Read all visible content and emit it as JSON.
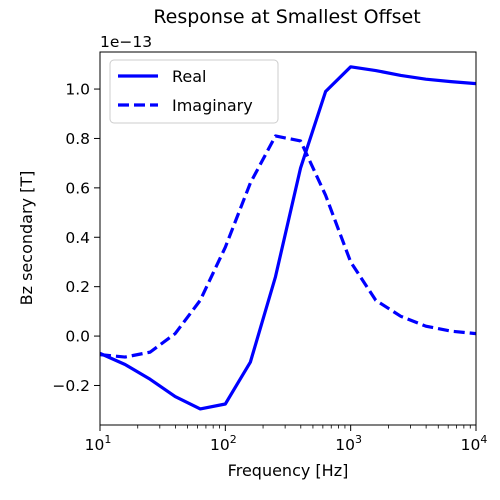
{
  "chart_data": {
    "type": "line",
    "title": "Response at Smallest Offset",
    "xlabel": "Frequency [Hz]",
    "ylabel": "Bz secondary [T]",
    "x_scale": "log",
    "xlim": [
      10,
      10000
    ],
    "ylim": [
      -0.36,
      1.15
    ],
    "y_multiplier": "1e−13",
    "x_ticks": [
      {
        "value": 10,
        "base": "10",
        "exp": "1"
      },
      {
        "value": 100,
        "base": "10",
        "exp": "2"
      },
      {
        "value": 1000,
        "base": "10",
        "exp": "3"
      },
      {
        "value": 10000,
        "base": "10",
        "exp": "4"
      }
    ],
    "y_ticks": [
      {
        "value": -0.2,
        "label": "−0.2"
      },
      {
        "value": 0.0,
        "label": "0.0"
      },
      {
        "value": 0.2,
        "label": "0.2"
      },
      {
        "value": 0.4,
        "label": "0.4"
      },
      {
        "value": 0.6,
        "label": "0.6"
      },
      {
        "value": 0.8,
        "label": "0.8"
      },
      {
        "value": 1.0,
        "label": "1.0"
      }
    ],
    "grid": false,
    "legend_position": "upper-left",
    "series": [
      {
        "name": "Real",
        "color": "#0000ff",
        "style": "solid",
        "x": [
          10,
          15.85,
          25.12,
          39.81,
          63.1,
          100,
          158.5,
          251.2,
          398.1,
          631,
          1000,
          1585,
          2512,
          3981,
          6310,
          10000
        ],
        "y": [
          -0.07,
          -0.115,
          -0.175,
          -0.245,
          -0.295,
          -0.275,
          -0.105,
          0.24,
          0.68,
          0.99,
          1.09,
          1.075,
          1.055,
          1.04,
          1.03,
          1.022
        ]
      },
      {
        "name": "Imaginary",
        "color": "#0000ff",
        "style": "dashed",
        "x": [
          10,
          15.85,
          25.12,
          39.81,
          63.1,
          100,
          158.5,
          251.2,
          398.1,
          631,
          1000,
          1585,
          2512,
          3981,
          6310,
          10000
        ],
        "y": [
          -0.075,
          -0.085,
          -0.065,
          0.01,
          0.145,
          0.36,
          0.62,
          0.81,
          0.79,
          0.57,
          0.3,
          0.145,
          0.08,
          0.04,
          0.02,
          0.01
        ]
      }
    ]
  }
}
